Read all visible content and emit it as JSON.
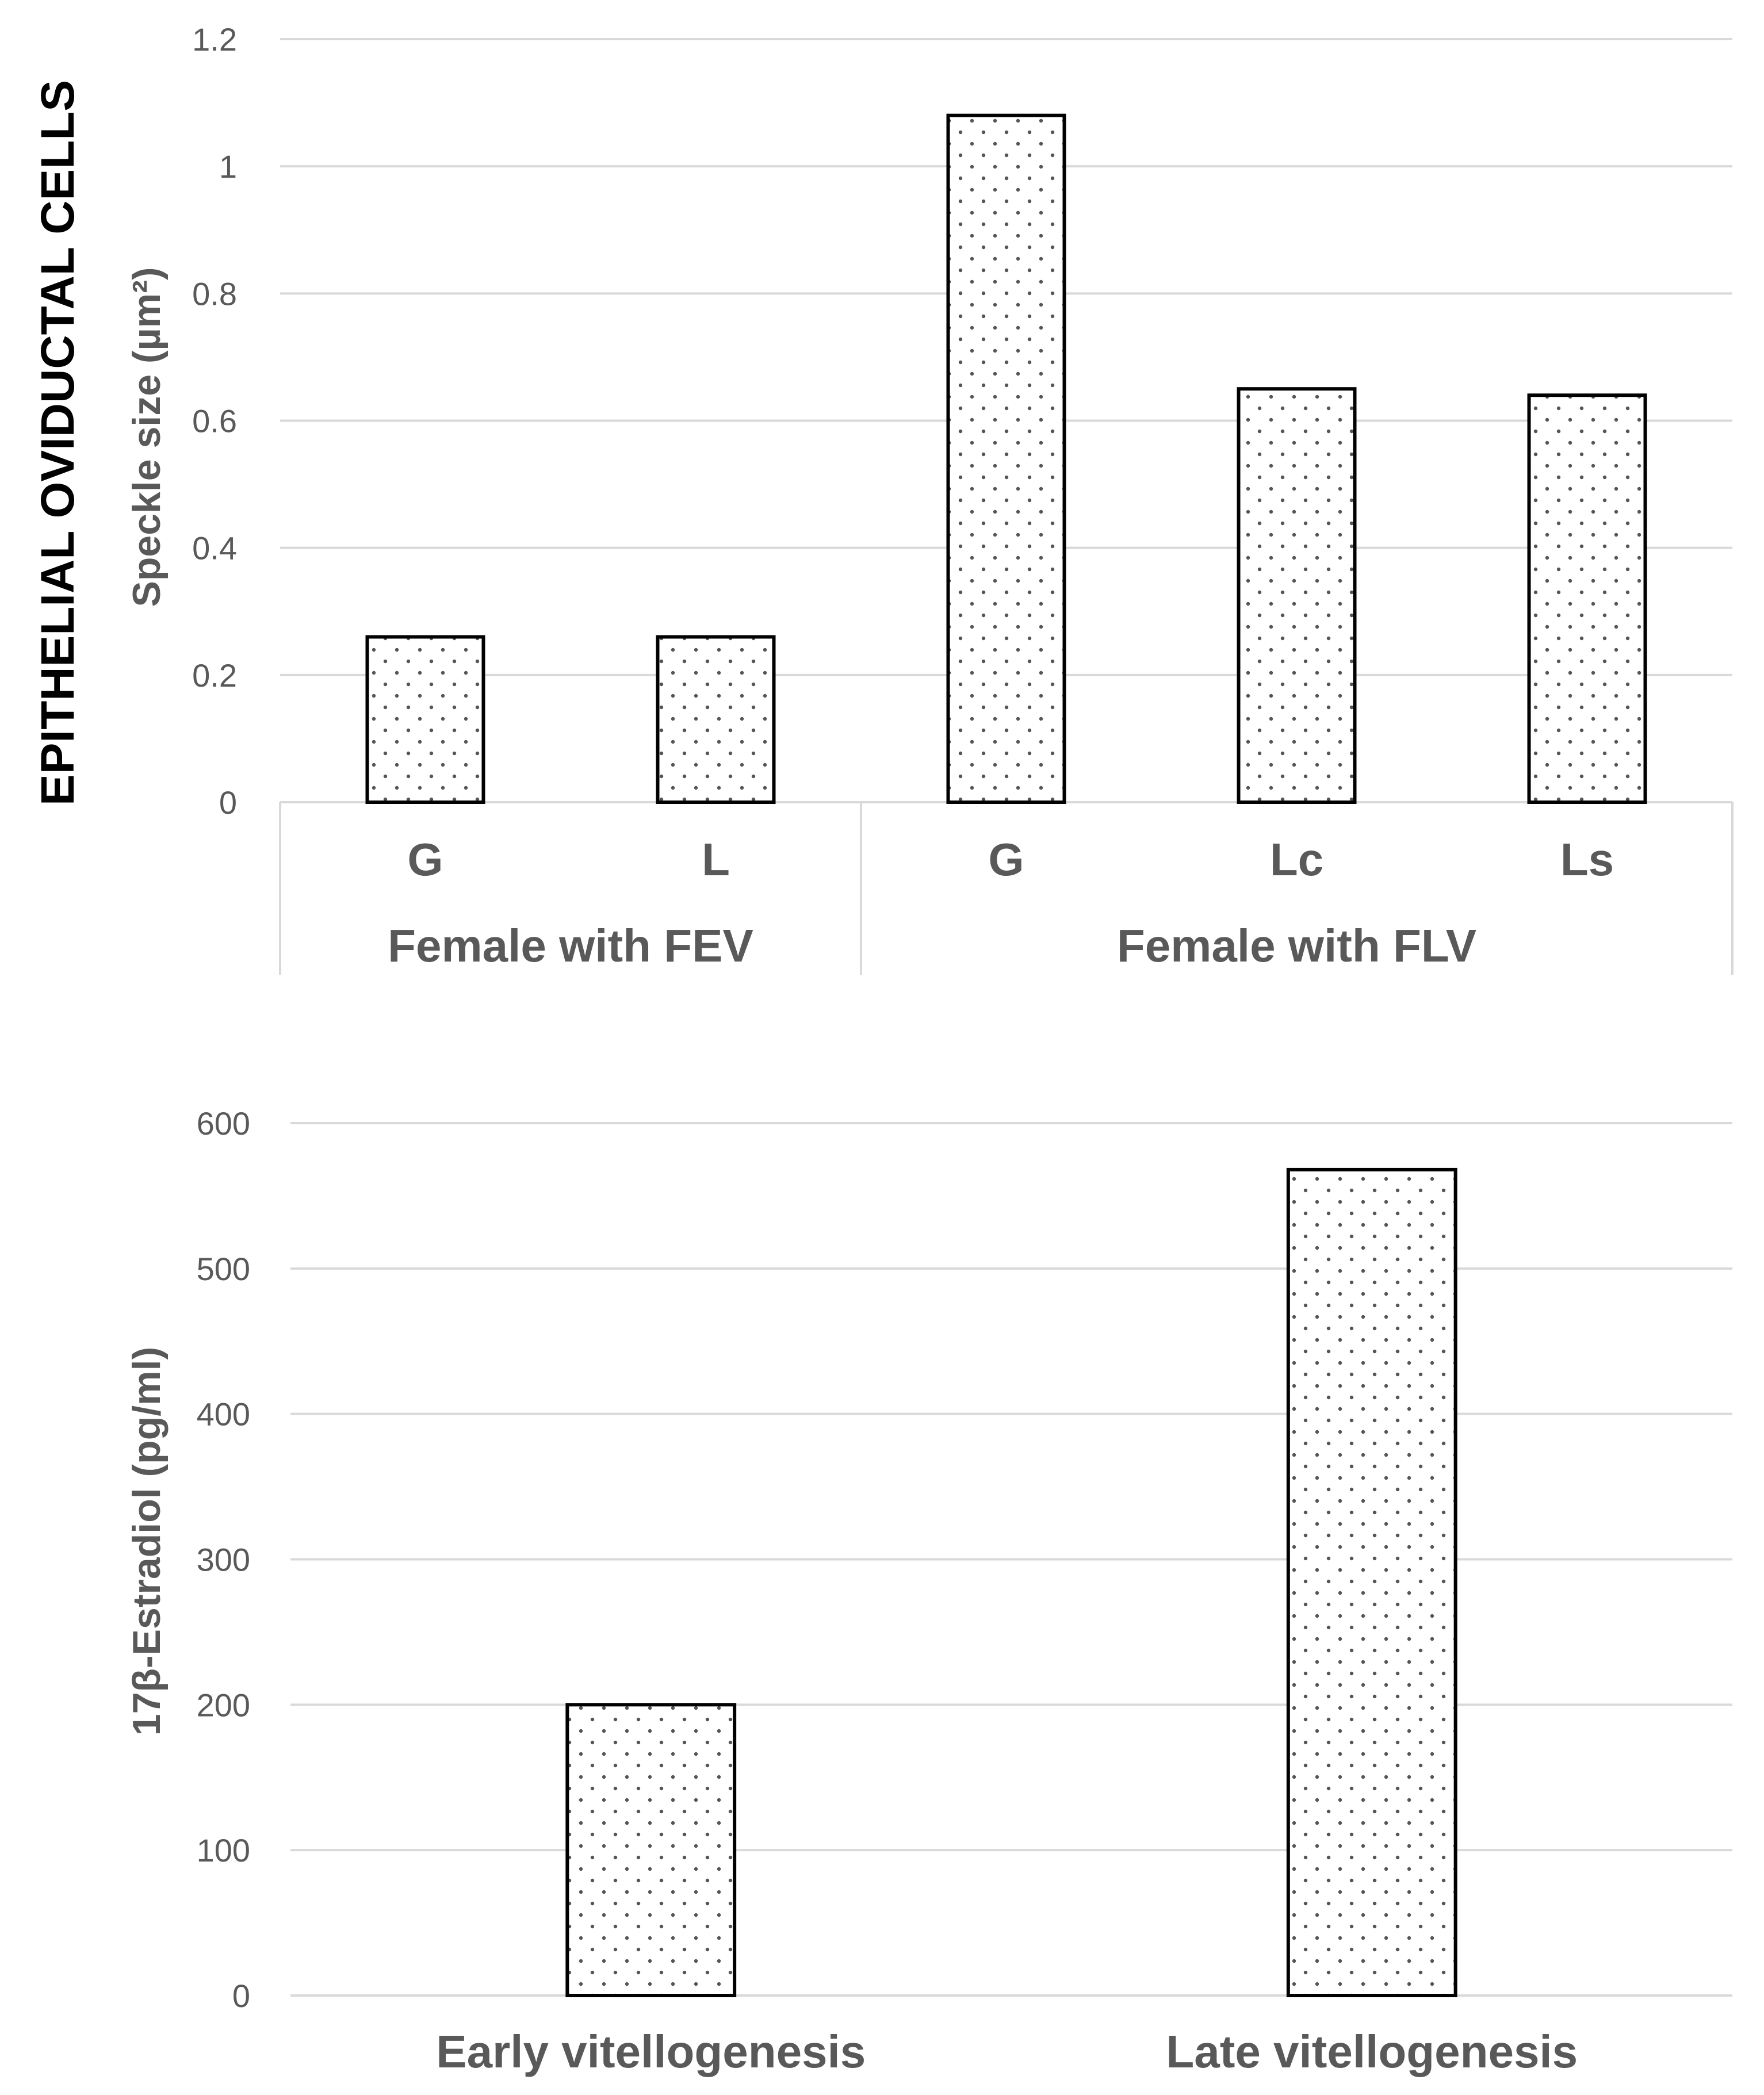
{
  "side_title": "EPITHELIAL OVIDUCTAL CELLS",
  "chart_data": [
    {
      "type": "bar",
      "title": "",
      "ylabel": "Speckle size  (µm²)",
      "ylim": [
        0,
        1.2
      ],
      "yticks": [
        0,
        0.2,
        0.4,
        0.6,
        0.8,
        1,
        1.2
      ],
      "ytick_labels": [
        "0",
        "0.2",
        "0.4",
        "0.6",
        "0.8",
        "1",
        "1.2"
      ],
      "groups": [
        {
          "label": "Female with FEV",
          "categories": [
            "G",
            "L"
          ],
          "values": [
            0.26,
            0.26
          ]
        },
        {
          "label": "Female with FLV",
          "categories": [
            "G",
            "Lc",
            "Ls"
          ],
          "values": [
            1.08,
            0.65,
            0.64
          ]
        }
      ]
    },
    {
      "type": "bar",
      "title": "",
      "ylabel": "17β-Estradiol (pg/ml)",
      "ylim": [
        0,
        600
      ],
      "yticks": [
        0,
        100,
        200,
        300,
        400,
        500,
        600
      ],
      "ytick_labels": [
        "0",
        "100",
        "200",
        "300",
        "400",
        "500",
        "600"
      ],
      "categories": [
        "Early vitellogenesis",
        "Late vitellogenesis"
      ],
      "values": [
        200,
        568
      ]
    }
  ]
}
